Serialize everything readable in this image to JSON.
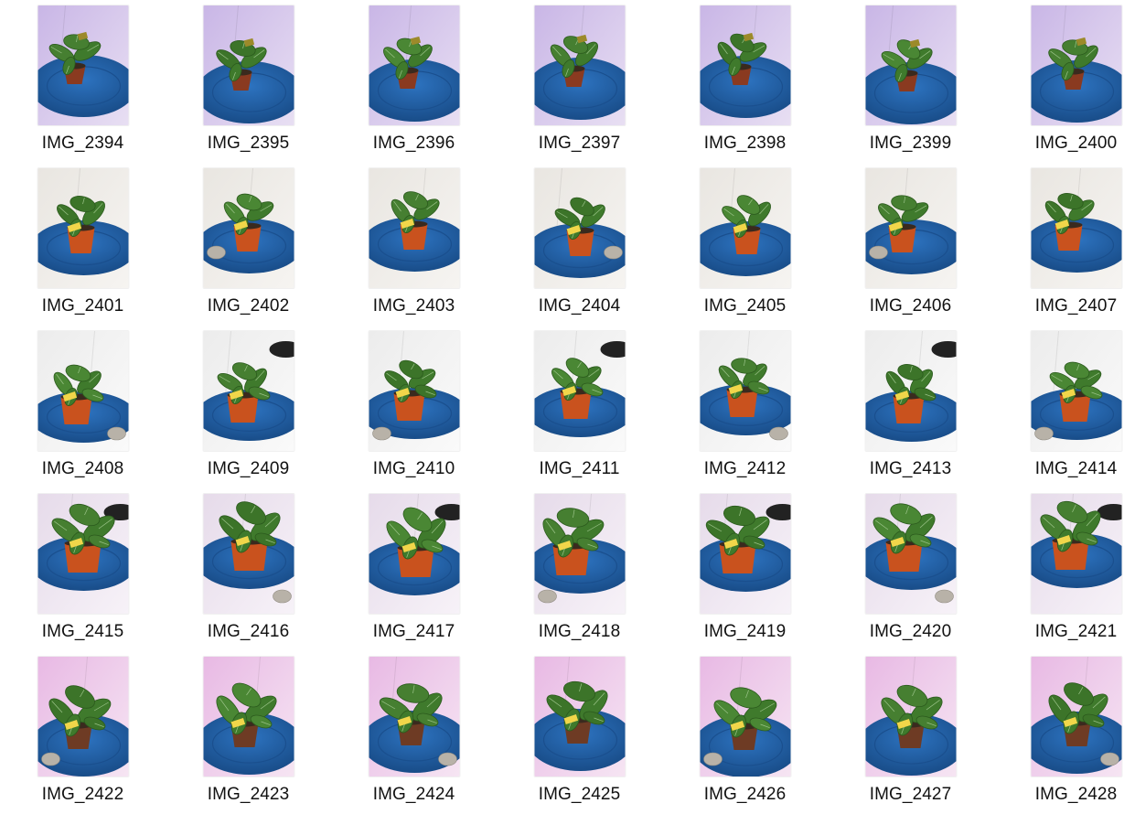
{
  "colors": {
    "background": "#ffffff",
    "filename_text": "#111111",
    "stool_blue": "#1f5fa8",
    "pot_red": "#c9521e",
    "leaf_green": "#3f7a2c",
    "tag_yellow": "#f1d64a"
  },
  "thumbnails": [
    {
      "name": "IMG_2394",
      "icon": "plant-photo-icon"
    },
    {
      "name": "IMG_2395",
      "icon": "plant-photo-icon"
    },
    {
      "name": "IMG_2396",
      "icon": "plant-photo-icon"
    },
    {
      "name": "IMG_2397",
      "icon": "plant-photo-icon"
    },
    {
      "name": "IMG_2398",
      "icon": "plant-photo-icon"
    },
    {
      "name": "IMG_2399",
      "icon": "plant-photo-icon"
    },
    {
      "name": "IMG_2400",
      "icon": "plant-photo-icon"
    },
    {
      "name": "IMG_2401",
      "icon": "plant-photo-icon"
    },
    {
      "name": "IMG_2402",
      "icon": "plant-photo-icon"
    },
    {
      "name": "IMG_2403",
      "icon": "plant-photo-icon"
    },
    {
      "name": "IMG_2404",
      "icon": "plant-photo-icon"
    },
    {
      "name": "IMG_2405",
      "icon": "plant-photo-icon"
    },
    {
      "name": "IMG_2406",
      "icon": "plant-photo-icon"
    },
    {
      "name": "IMG_2407",
      "icon": "plant-photo-icon"
    },
    {
      "name": "IMG_2408",
      "icon": "plant-photo-icon"
    },
    {
      "name": "IMG_2409",
      "icon": "plant-photo-icon"
    },
    {
      "name": "IMG_2410",
      "icon": "plant-photo-icon"
    },
    {
      "name": "IMG_2411",
      "icon": "plant-photo-icon"
    },
    {
      "name": "IMG_2412",
      "icon": "plant-photo-icon"
    },
    {
      "name": "IMG_2413",
      "icon": "plant-photo-icon"
    },
    {
      "name": "IMG_2414",
      "icon": "plant-photo-icon"
    },
    {
      "name": "IMG_2415",
      "icon": "plant-photo-icon"
    },
    {
      "name": "IMG_2416",
      "icon": "plant-photo-icon"
    },
    {
      "name": "IMG_2417",
      "icon": "plant-photo-icon"
    },
    {
      "name": "IMG_2418",
      "icon": "plant-photo-icon"
    },
    {
      "name": "IMG_2419",
      "icon": "plant-photo-icon"
    },
    {
      "name": "IMG_2420",
      "icon": "plant-photo-icon"
    },
    {
      "name": "IMG_2421",
      "icon": "plant-photo-icon"
    },
    {
      "name": "IMG_2422",
      "icon": "plant-photo-icon"
    },
    {
      "name": "IMG_2423",
      "icon": "plant-photo-icon"
    },
    {
      "name": "IMG_2424",
      "icon": "plant-photo-icon"
    },
    {
      "name": "IMG_2425",
      "icon": "plant-photo-icon"
    },
    {
      "name": "IMG_2426",
      "icon": "plant-photo-icon"
    },
    {
      "name": "IMG_2427",
      "icon": "plant-photo-icon"
    },
    {
      "name": "IMG_2428",
      "icon": "plant-photo-icon"
    }
  ]
}
